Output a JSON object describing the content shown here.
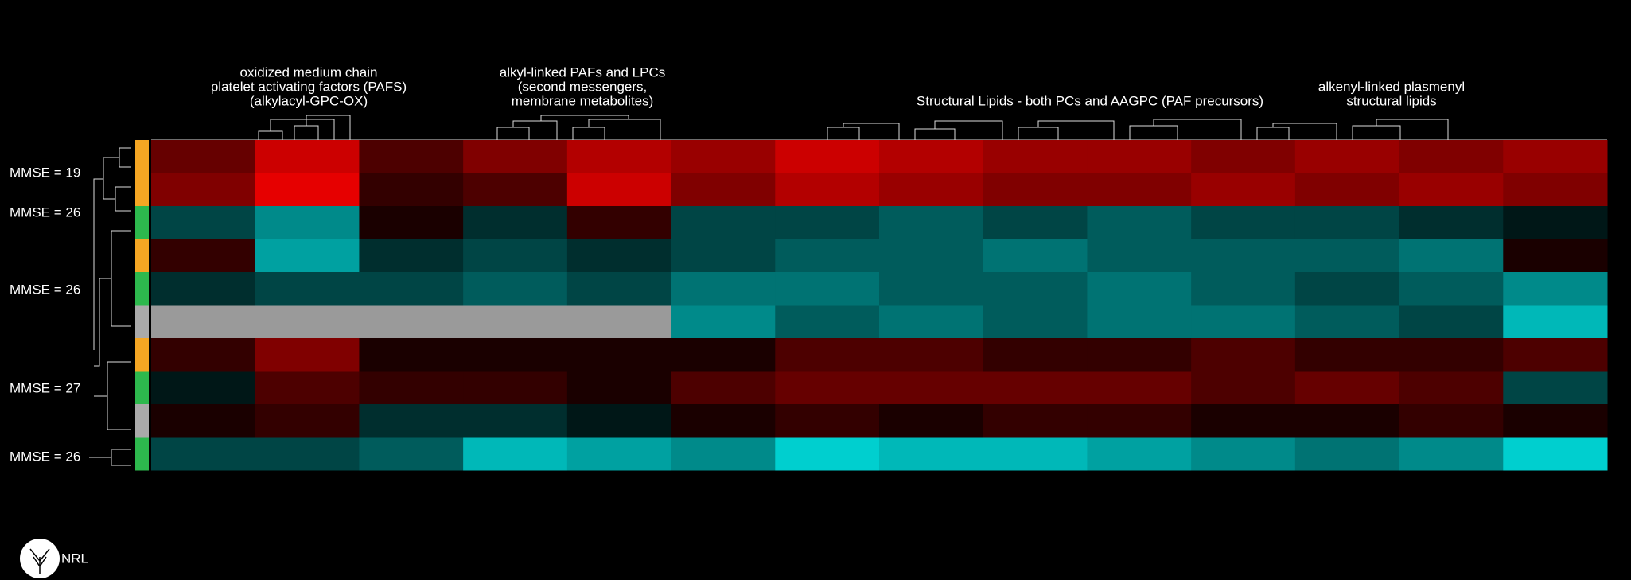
{
  "chart_data": {
    "type": "heatmap",
    "column_labels": [
      [
        "oxidized medium chain",
        "platelet activating factors (PAFS)",
        "(alkylacyl-GPC-OX)"
      ],
      [
        "alkyl-linked PAFs and LPCs",
        "(second messengers,",
        "membrane metabolites)"
      ],
      [
        "Structural Lipids - both PCs and AAGPC (PAF precursors)"
      ],
      [
        "alkenyl-linked plasmenyl",
        "structural lipids"
      ]
    ],
    "row_labels": [
      "MMSE = 19",
      "MMSE = 26",
      "MMSE = 26",
      "MMSE = 27",
      "MMSE = 26"
    ],
    "row_colors": [
      "#f5a623",
      "#f5a623",
      "#2db84d",
      "#f5a623",
      "#2db84d",
      "#aaaaaa",
      "#f5a623",
      "#2db84d",
      "#aaaaaa",
      "#2db84d"
    ],
    "positive_color": "#ff0000",
    "negative_color": "#00e6e6",
    "missing_color": "#9a9a9a",
    "values": [
      [
        0.4,
        0.8,
        0.3,
        0.5,
        0.7,
        0.6,
        0.8,
        0.7,
        0.6,
        0.6,
        0.5,
        0.6,
        0.5,
        0.6
      ],
      [
        0.5,
        0.9,
        0.2,
        0.3,
        0.8,
        0.5,
        0.7,
        0.6,
        0.5,
        0.5,
        0.6,
        0.5,
        0.6,
        0.5
      ],
      [
        -0.3,
        -0.6,
        0.1,
        -0.2,
        0.2,
        -0.3,
        -0.3,
        -0.4,
        -0.3,
        -0.4,
        -0.3,
        -0.3,
        -0.2,
        -0.1
      ],
      [
        0.2,
        -0.7,
        -0.2,
        -0.3,
        -0.2,
        -0.3,
        -0.4,
        -0.4,
        -0.5,
        -0.4,
        -0.4,
        -0.4,
        -0.5,
        0.1
      ],
      [
        -0.2,
        -0.3,
        -0.3,
        -0.4,
        -0.3,
        -0.5,
        -0.5,
        -0.4,
        -0.4,
        -0.5,
        -0.4,
        -0.3,
        -0.4,
        -0.6
      ],
      [
        null,
        null,
        null,
        null,
        null,
        -0.6,
        -0.4,
        -0.5,
        -0.4,
        -0.5,
        -0.5,
        -0.4,
        -0.3,
        -0.8
      ],
      [
        0.2,
        0.5,
        0.1,
        0.1,
        0.1,
        0.1,
        0.3,
        0.3,
        0.2,
        0.2,
        0.3,
        0.2,
        0.2,
        0.3
      ],
      [
        -0.1,
        0.3,
        0.2,
        0.2,
        0.1,
        0.3,
        0.4,
        0.4,
        0.4,
        0.4,
        0.3,
        0.4,
        0.3,
        -0.3
      ],
      [
        0.1,
        0.2,
        -0.2,
        -0.2,
        -0.1,
        0.1,
        0.2,
        0.1,
        0.2,
        0.2,
        0.1,
        0.1,
        0.2,
        0.1
      ],
      [
        -0.3,
        -0.3,
        -0.4,
        -0.8,
        -0.7,
        -0.6,
        -0.9,
        -0.8,
        -0.8,
        -0.7,
        -0.6,
        -0.5,
        -0.6,
        -0.9
      ]
    ],
    "logo_text": "NRL"
  }
}
